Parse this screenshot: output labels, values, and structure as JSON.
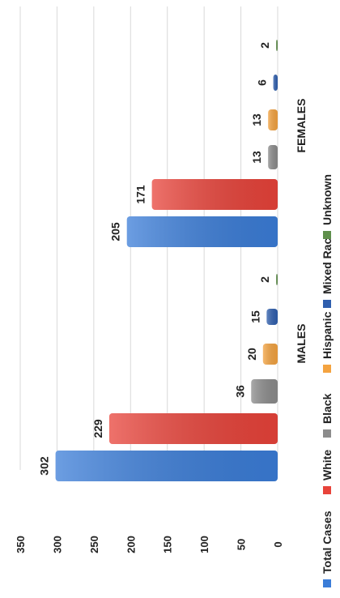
{
  "chart_data": {
    "type": "bar",
    "orientation": "rotated-90",
    "categories": [
      "MALES",
      "FEMALES"
    ],
    "series": [
      {
        "name": "Total Cases",
        "color": "#3b7dd8",
        "values": [
          302,
          205
        ]
      },
      {
        "name": "White",
        "color": "#e8433a",
        "values": [
          229,
          171
        ]
      },
      {
        "name": "Black",
        "color": "#8c8c8c",
        "values": [
          36,
          13
        ]
      },
      {
        "name": "Hispanic",
        "color": "#f4a340",
        "values": [
          20,
          13
        ]
      },
      {
        "name": "Mixed Race",
        "color": "#2f5fae",
        "values": [
          15,
          6
        ]
      },
      {
        "name": "Unknown",
        "color": "#5f8f4c",
        "values": [
          2,
          2
        ]
      }
    ],
    "value_axis": {
      "range": [
        0,
        350
      ],
      "ticks": [
        "0",
        "50",
        "100",
        "150",
        "200",
        "250",
        "300",
        "350"
      ]
    },
    "grid": true,
    "legend": "bottom"
  }
}
